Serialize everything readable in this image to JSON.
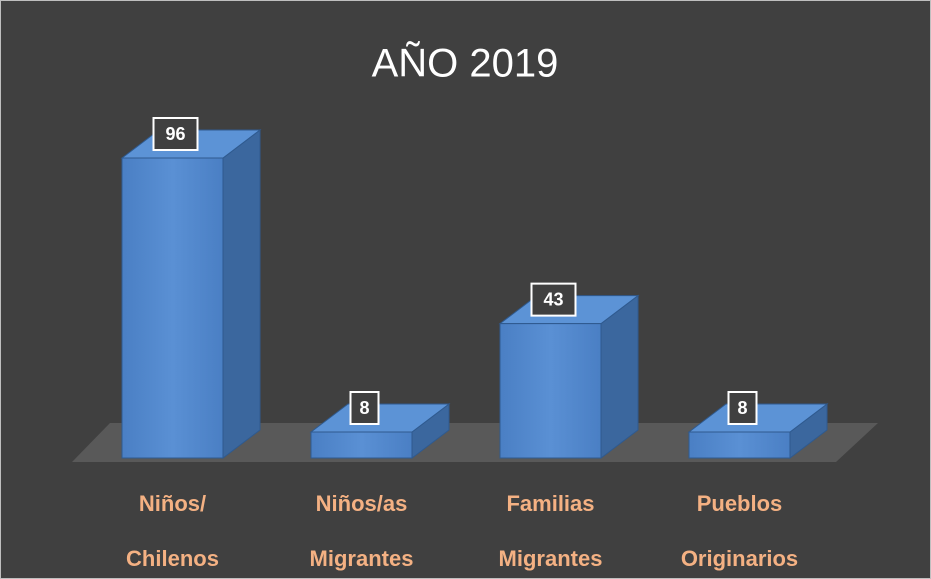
{
  "chart_data": {
    "type": "bar3d",
    "title": "AÑO 2019",
    "categories": [
      [
        "Niños/",
        "Chilenos"
      ],
      [
        "Niños/as",
        "Migrantes"
      ],
      [
        "Familias",
        "Migrantes"
      ],
      [
        "Pueblos",
        "Originarios"
      ]
    ],
    "values": [
      96,
      8,
      43,
      8
    ],
    "color": "#4f81bd"
  }
}
